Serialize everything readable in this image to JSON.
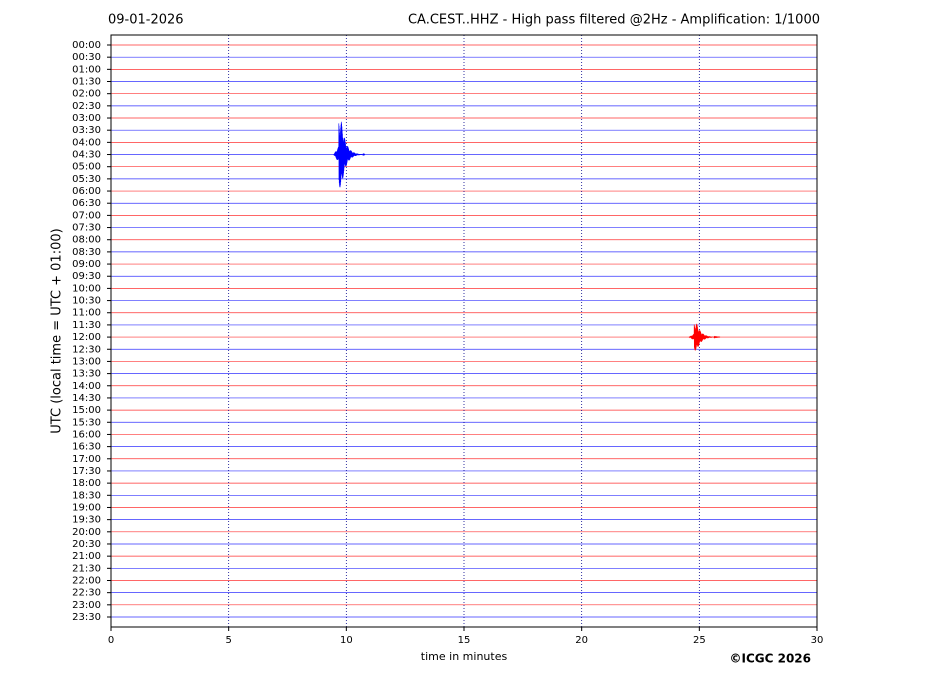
{
  "chart_data": {
    "type": "helicorder",
    "date": "09-01-2026",
    "title": "CA.CEST..HHZ - High pass filtered @2Hz - Amplification: 1/1000",
    "ylabel": "UTC (local time = UTC + 01:00)",
    "xlabel": "time in minutes",
    "credit": "©ICGC 2026",
    "categories": [
      "00:00",
      "00:30",
      "01:00",
      "01:30",
      "02:00",
      "02:30",
      "03:00",
      "03:30",
      "04:00",
      "04:30",
      "05:00",
      "05:30",
      "06:00",
      "06:30",
      "07:00",
      "07:30",
      "08:00",
      "08:30",
      "09:00",
      "09:30",
      "10:00",
      "10:30",
      "11:00",
      "11:30",
      "12:00",
      "12:30",
      "13:00",
      "13:30",
      "14:00",
      "14:30",
      "15:00",
      "15:30",
      "16:00",
      "16:30",
      "17:00",
      "17:30",
      "18:00",
      "18:30",
      "19:00",
      "19:30",
      "20:00",
      "20:30",
      "21:00",
      "21:30",
      "22:00",
      "22:30",
      "23:00",
      "23:30"
    ],
    "colors": [
      "#ff0000",
      "#0000ff"
    ],
    "xlim": [
      0,
      30
    ],
    "xticks": [
      0,
      5,
      10,
      15,
      20,
      25,
      30
    ],
    "grid": true,
    "events": [
      {
        "row": 9,
        "x": 9.8,
        "amplitude": 2.7
      },
      {
        "row": 24,
        "x": 24.9,
        "amplitude": 1.1
      }
    ]
  }
}
